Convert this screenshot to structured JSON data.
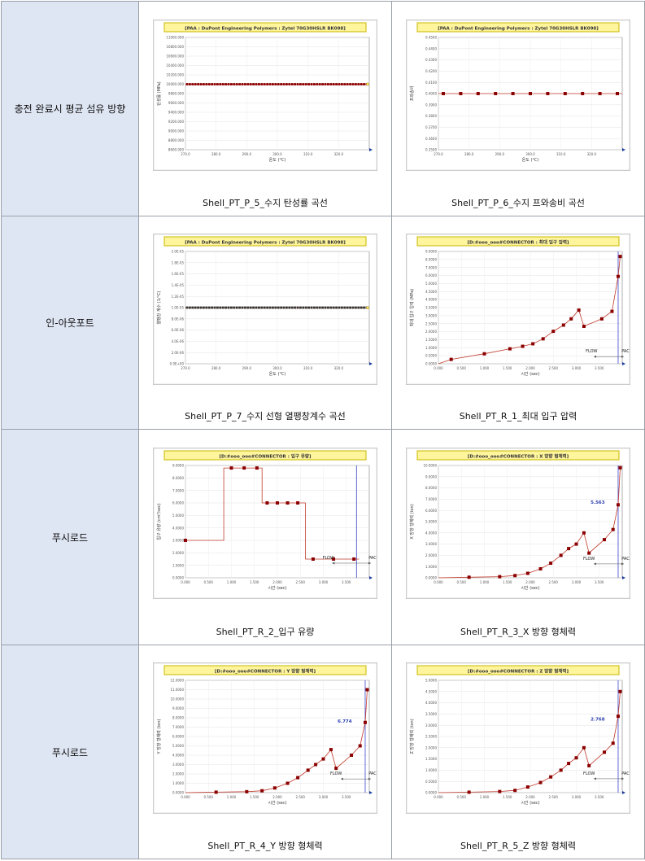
{
  "rows": [
    {
      "label": "충전 완료시 평균 섬유 방향",
      "cells": [
        {
          "caption": "Shell_PT_P_5_수지 탄성률 곡선",
          "chart_data": {
            "type": "line",
            "title": "[PAA : DuPont Engineering Polymers : Zytel 70G30HSLR BK098]",
            "ylabel": "탄성률 (MPa)",
            "xlabel": "온도 (°C)",
            "ylim": [
              8600,
              11000
            ],
            "xlim": [
              270,
              330
            ],
            "yticks": [
              "11000.000",
              "10800.000",
              "10600.000",
              "10400.000",
              "10200.000",
              "10000.000",
              "9800.000",
              "9600.000",
              "9400.000",
              "9200.000",
              "9000.000",
              "8800.000",
              "8600.000"
            ],
            "xticks": [
              "270.0",
              "280.0",
              "290.0",
              "300.0",
              "310.0",
              "320.0"
            ],
            "series": [
              {
                "values": [
                  {
                    "x": 270,
                    "y": 10000
                  },
                  {
                    "x": 330,
                    "y": 10000
                  }
                ]
              }
            ],
            "markers": "dense",
            "color": "#8b0000"
          }
        },
        {
          "caption": "Shell_PT_P_6_수지 프와송비 곡선",
          "chart_data": {
            "type": "line",
            "title": "[PAA : DuPont Engineering Polymers : Zytel 70G30HSLR BK098]",
            "ylabel": "프와송비",
            "xlabel": "온도 (°C)",
            "ylim": [
              0.35,
              0.45
            ],
            "xlim": [
              270,
              330
            ],
            "yticks": [
              "0.4500",
              "0.4400",
              "0.4300",
              "0.4200",
              "0.4100",
              "0.4000",
              "0.3900",
              "0.3800",
              "0.3700",
              "0.3600",
              "0.3500"
            ],
            "xticks": [
              "270.0",
              "280.0",
              "290.0",
              "300.0",
              "310.0",
              "320.0"
            ],
            "series": [
              {
                "values": [
                  {
                    "x": 270,
                    "y": 0.4
                  },
                  {
                    "x": 330,
                    "y": 0.4
                  }
                ]
              }
            ],
            "markers": "sparse",
            "color": "#8b0000"
          }
        }
      ]
    },
    {
      "label": "인-아웃포트",
      "cells": [
        {
          "caption": "Shell_PT_P_7_수지 선형 열팽창계수 곡선",
          "chart_data": {
            "type": "line",
            "title": "[PAA : DuPont Engineering Polymers : Zytel 70G30HSLR BK098]",
            "ylabel": "열팽창 계수 (1/°C)",
            "xlabel": "온도 (°C)",
            "ylim": [
              0,
              10
            ],
            "xlim": [
              270,
              330
            ],
            "yticks": [
              "2.0E-05",
              "1.8E-05",
              "1.6E-05",
              "1.4E-05",
              "1.2E-05",
              "1.0E-05",
              "8.0E-06",
              "6.0E-06",
              "4.0E-06",
              "2.0E-06",
              "0.0E+00"
            ],
            "xticks": [
              "270.0",
              "280.0",
              "290.0",
              "300.0",
              "310.0",
              "320.0"
            ],
            "series": [
              {
                "values": [
                  {
                    "x": 270,
                    "y": 5
                  },
                  {
                    "x": 330,
                    "y": 5
                  }
                ]
              }
            ],
            "markers": "dense",
            "color": "#333333"
          }
        },
        {
          "caption": "Shell_PT_R_1_최대 입구 압력",
          "chart_data": {
            "type": "line",
            "title": "[D:#ooo_ooo#CONNECTOR : 최대 입구 압력]",
            "ylabel": "최대 입구 압력 (MPa)",
            "xlabel": "시간 (sec)",
            "ylim": [
              0,
              9
            ],
            "xlim": [
              0,
              3.6
            ],
            "yticks": [
              "9.0000",
              "8.0000",
              "7.0000",
              "6.0000",
              "5.0000",
              "4.5000",
              "4.0000",
              "3.5000",
              "3.0000",
              "2.5000",
              "2.0000",
              "1.5000",
              "1.0000",
              "0.5000",
              "0.0000"
            ],
            "xticks": [
              "0.000",
              "0.500",
              "1.000",
              "1.500",
              "2.000",
              "2.500",
              "3.000",
              "3.500"
            ],
            "series": [
              {
                "values": [
                  {
                    "x": 0.0,
                    "y": 0.0
                  },
                  {
                    "x": 0.25,
                    "y": 0.35
                  },
                  {
                    "x": 0.9,
                    "y": 0.8
                  },
                  {
                    "x": 1.4,
                    "y": 1.2
                  },
                  {
                    "x": 1.65,
                    "y": 1.4
                  },
                  {
                    "x": 1.85,
                    "y": 1.6
                  },
                  {
                    "x": 2.05,
                    "y": 2.0
                  },
                  {
                    "x": 2.25,
                    "y": 2.6
                  },
                  {
                    "x": 2.45,
                    "y": 3.1
                  },
                  {
                    "x": 2.6,
                    "y": 3.6
                  },
                  {
                    "x": 2.75,
                    "y": 4.3
                  },
                  {
                    "x": 2.85,
                    "y": 3.0
                  },
                  {
                    "x": 3.2,
                    "y": 3.6
                  },
                  {
                    "x": 3.4,
                    "y": 4.2
                  },
                  {
                    "x": 3.52,
                    "y": 7.0
                  },
                  {
                    "x": 3.56,
                    "y": 8.6
                  }
                ]
              }
            ],
            "vline": 3.52,
            "annotations": [
              {
                "text": "FLOW",
                "x": 3.0,
                "y": 0.9
              },
              {
                "text": "PAC",
                "x": 3.95,
                "y": 0.9
              }
            ],
            "color": "#8b0000"
          }
        }
      ]
    },
    {
      "label": "푸시로드",
      "cells": [
        {
          "caption": "Shell_PT_R_2_입구 유량",
          "chart_data": {
            "type": "line",
            "title": "[D:#ooo_ooo#CONNECTOR : 입구 유량]",
            "ylabel": "입구 유량 (cm³/sec)",
            "xlabel": "시간 (sec)",
            "ylim": [
              0,
              9
            ],
            "xlim": [
              0,
              3.6
            ],
            "yticks": [
              "9.0000",
              "8.0000",
              "7.0000",
              "6.0000",
              "5.0000",
              "4.0000",
              "3.0000",
              "2.0000",
              "1.0000",
              "0.0000"
            ],
            "xticks": [
              "0.000",
              "0.500",
              "1.000",
              "1.500",
              "2.000",
              "2.500",
              "3.000",
              "3.500"
            ],
            "series": [
              {
                "values": [
                  {
                    "x": 0.0,
                    "y": 3.0
                  },
                  {
                    "x": 0.55,
                    "y": 3.0
                  },
                  {
                    "x": 0.75,
                    "y": 3.0
                  },
                  {
                    "x": 0.75,
                    "y": 8.8
                  },
                  {
                    "x": 1.3,
                    "y": 8.8
                  },
                  {
                    "x": 1.5,
                    "y": 8.8
                  },
                  {
                    "x": 1.5,
                    "y": 6.0
                  },
                  {
                    "x": 2.35,
                    "y": 6.0
                  },
                  {
                    "x": 2.35,
                    "y": 1.5
                  },
                  {
                    "x": 3.4,
                    "y": 1.5
                  }
                ]
              }
            ],
            "markers_at": [
              0.0,
              0.9,
              1.15,
              1.4,
              1.6,
              1.8,
              2.0,
              2.2,
              2.5,
              2.9,
              3.3
            ],
            "vline": 3.35,
            "annotations": [
              {
                "text": "FLOW",
                "x": 2.8,
                "y": 1.5
              },
              {
                "text": "PAC",
                "x": 3.75,
                "y": 1.5
              }
            ],
            "color": "#8b0000"
          }
        },
        {
          "caption": "Shell_PT_R_3_X 방향 형체력",
          "chart_data": {
            "type": "line",
            "title": "[D:#ooo_ooo#CONNECTOR : X 방향 형체력]",
            "ylabel": "X 방향 형체력 (ton)",
            "xlabel": "시간 (sec)",
            "ylim": [
              0,
              10
            ],
            "xlim": [
              0,
              3.6
            ],
            "yticks": [
              "10.0000",
              "9.0000",
              "8.0000",
              "7.0000",
              "6.0000",
              "5.0000",
              "4.0000",
              "3.0000",
              "2.0000",
              "1.0000",
              "0.0000"
            ],
            "xticks": [
              "0.000",
              "0.500",
              "1.000",
              "1.500",
              "2.000",
              "2.500",
              "3.000",
              "3.500"
            ],
            "series": [
              {
                "values": [
                  {
                    "x": 0.0,
                    "y": 0.0
                  },
                  {
                    "x": 0.6,
                    "y": 0.05
                  },
                  {
                    "x": 1.2,
                    "y": 0.1
                  },
                  {
                    "x": 1.5,
                    "y": 0.2
                  },
                  {
                    "x": 1.75,
                    "y": 0.4
                  },
                  {
                    "x": 2.0,
                    "y": 0.8
                  },
                  {
                    "x": 2.2,
                    "y": 1.3
                  },
                  {
                    "x": 2.4,
                    "y": 2.0
                  },
                  {
                    "x": 2.55,
                    "y": 2.6
                  },
                  {
                    "x": 2.7,
                    "y": 3.0
                  },
                  {
                    "x": 2.85,
                    "y": 4.0
                  },
                  {
                    "x": 2.95,
                    "y": 2.2
                  },
                  {
                    "x": 3.25,
                    "y": 3.4
                  },
                  {
                    "x": 3.42,
                    "y": 4.3
                  },
                  {
                    "x": 3.52,
                    "y": 6.5
                  },
                  {
                    "x": 3.56,
                    "y": 9.8
                  }
                ]
              }
            ],
            "vline": 3.52,
            "annotations": [
              {
                "text": "5.563",
                "x": 3.12,
                "y": 6.6,
                "accent": true
              },
              {
                "text": "FLOW",
                "x": 2.95,
                "y": 1.6
              },
              {
                "text": "PAC",
                "x": 3.95,
                "y": 1.6
              }
            ],
            "color": "#8b0000"
          }
        }
      ]
    },
    {
      "label": "푸시로드",
      "cells": [
        {
          "caption": "Shell_PT_R_4_Y 방향 형체력",
          "chart_data": {
            "type": "line",
            "title": "[D:#ooo_ooo#CONNECTOR : Y 방향 형체력]",
            "ylabel": "Y 방향 형체력 (ton)",
            "xlabel": "시간 (sec)",
            "ylim": [
              0,
              12
            ],
            "xlim": [
              0,
              3.6
            ],
            "yticks": [
              "12.0000",
              "11.0000",
              "10.0000",
              "9.0000",
              "8.0000",
              "7.0000",
              "6.0000",
              "5.0000",
              "4.0000",
              "3.0000",
              "2.0000",
              "1.0000",
              "0.0000"
            ],
            "xticks": [
              "0.000",
              "0.500",
              "1.000",
              "1.500",
              "2.000",
              "2.500",
              "3.000",
              "3.500"
            ],
            "series": [
              {
                "values": [
                  {
                    "x": 0.0,
                    "y": 0.0
                  },
                  {
                    "x": 0.6,
                    "y": 0.05
                  },
                  {
                    "x": 1.2,
                    "y": 0.1
                  },
                  {
                    "x": 1.5,
                    "y": 0.2
                  },
                  {
                    "x": 1.75,
                    "y": 0.5
                  },
                  {
                    "x": 2.0,
                    "y": 1.0
                  },
                  {
                    "x": 2.2,
                    "y": 1.6
                  },
                  {
                    "x": 2.4,
                    "y": 2.4
                  },
                  {
                    "x": 2.55,
                    "y": 3.0
                  },
                  {
                    "x": 2.7,
                    "y": 3.6
                  },
                  {
                    "x": 2.85,
                    "y": 4.6
                  },
                  {
                    "x": 2.95,
                    "y": 2.6
                  },
                  {
                    "x": 3.25,
                    "y": 4.0
                  },
                  {
                    "x": 3.42,
                    "y": 5.0
                  },
                  {
                    "x": 3.52,
                    "y": 7.5
                  },
                  {
                    "x": 3.56,
                    "y": 11.0
                  }
                ]
              }
            ],
            "vline": 3.52,
            "annotations": [
              {
                "text": "6.774",
                "x": 3.12,
                "y": 7.5,
                "accent": true
              },
              {
                "text": "FLOW",
                "x": 2.95,
                "y": 1.9
              },
              {
                "text": "PAC",
                "x": 3.95,
                "y": 1.9
              }
            ],
            "color": "#8b0000"
          }
        },
        {
          "caption": "Shell_PT_R_5_Z 방향 형체력",
          "chart_data": {
            "type": "line",
            "title": "[D:#ooo_ooo#CONNECTOR : Z 방향 형체력]",
            "ylabel": "Z 방향 형체력 (ton)",
            "xlabel": "시간 (sec)",
            "ylim": [
              0,
              5
            ],
            "xlim": [
              0,
              3.6
            ],
            "yticks": [
              "5.0000",
              "4.5000",
              "4.0000",
              "3.5000",
              "3.0000",
              "2.5000",
              "2.0000",
              "1.5000",
              "1.0000",
              "0.5000",
              "0.0000"
            ],
            "xticks": [
              "0.000",
              "0.500",
              "1.000",
              "1.500",
              "2.000",
              "2.500",
              "3.000",
              "3.500"
            ],
            "series": [
              {
                "values": [
                  {
                    "x": 0.0,
                    "y": 0.0
                  },
                  {
                    "x": 0.6,
                    "y": 0.02
                  },
                  {
                    "x": 1.2,
                    "y": 0.05
                  },
                  {
                    "x": 1.5,
                    "y": 0.1
                  },
                  {
                    "x": 1.75,
                    "y": 0.25
                  },
                  {
                    "x": 2.0,
                    "y": 0.45
                  },
                  {
                    "x": 2.2,
                    "y": 0.7
                  },
                  {
                    "x": 2.4,
                    "y": 1.0
                  },
                  {
                    "x": 2.55,
                    "y": 1.3
                  },
                  {
                    "x": 2.7,
                    "y": 1.55
                  },
                  {
                    "x": 2.85,
                    "y": 2.0
                  },
                  {
                    "x": 2.95,
                    "y": 1.2
                  },
                  {
                    "x": 3.25,
                    "y": 1.8
                  },
                  {
                    "x": 3.42,
                    "y": 2.2
                  },
                  {
                    "x": 3.52,
                    "y": 3.4
                  },
                  {
                    "x": 3.56,
                    "y": 4.5
                  }
                ]
              }
            ],
            "vline": 3.52,
            "annotations": [
              {
                "text": "2.768",
                "x": 3.12,
                "y": 3.2,
                "accent": true
              },
              {
                "text": "FLOW",
                "x": 2.95,
                "y": 0.8
              },
              {
                "text": "PAC",
                "x": 3.95,
                "y": 0.8
              }
            ],
            "color": "#8b0000"
          }
        }
      ]
    }
  ]
}
